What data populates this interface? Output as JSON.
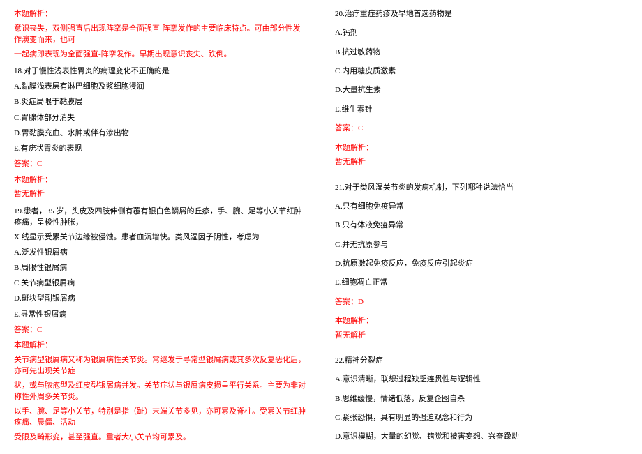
{
  "left_column": {
    "analysis_header_1": "本题解析：",
    "analysis_text_1a": "意识丧失，双侧强直后出现阵挛是全面强直-阵挛发作的主要临床特点。可由部分性发作演变而来，也可",
    "analysis_text_1b": "一起病即表现为全面强直-阵挛发作。早期出现意识丧失、跌倒。",
    "q18": {
      "stem": "18.对于慢性浅表性胃炎的病理变化不正确的是",
      "opt_a": "A.黏膜浅表层有淋巴细胞及浆细胞浸润",
      "opt_b": "B.炎症局限于黏膜层",
      "opt_c": "C.胃腺体部分消失",
      "opt_d": "D.胃黏膜充血、水肿或伴有渗出物",
      "opt_e": "E.有疣状胃炎的表现",
      "answer": "答案：C",
      "analysis_header": "本题解析：",
      "analysis_text": "暂无解析"
    },
    "q19": {
      "stem_a": "19.患者，35 岁，头皮及四肢伸侧有覆有银白色鳞屑的丘疹，手、腕、足等小关节红肿疼痛，呈梭性肿胀，",
      "stem_b": "X 线显示受累关节边缘被侵蚀。患者血沉增快。类风湿因子阴性，考虑为",
      "opt_a": "A.泛发性银屑病",
      "opt_b": "B.局限性银屑病",
      "opt_c": "C.关节病型银屑病",
      "opt_d": "D.斑块型副银屑病",
      "opt_e": "E.寻常性银屑病",
      "answer": "答案：C",
      "analysis_header": "本题解析：",
      "analysis_text_a": "关节病型银屑病又称为银屑病性关节炎。常继发于寻常型银屑病或其多次反复恶化后，亦可先出现关节症",
      "analysis_text_b": "状，或与脓疱型及红皮型银屑病并发。关节症状与银屑病皮损呈平行关系。主要为非对称性外周多关节炎。",
      "analysis_text_c": "以手、腕、足等小关节，特别是指（趾）末端关节多见，亦可累及脊柱。受累关节红肿疼痛、晨僵、活动",
      "analysis_text_d": "受限及畸形变，甚至强直。重者大小关节均可累及。"
    }
  },
  "right_column": {
    "q20": {
      "stem": "20.治疗重症药疹及早地首选药物是",
      "opt_a": "A.钙剂",
      "opt_b": "B.抗过敏药物",
      "opt_c": "C.内用糖皮质激素",
      "opt_d": "D.大量抗生素",
      "opt_e": "E.维生素针",
      "answer": "答案：C",
      "analysis_header": "本题解析：",
      "analysis_text": "暂无解析"
    },
    "q21": {
      "stem": "21.对于类风湿关节炎的发病机制，下列哪种说法恰当",
      "opt_a": "A.只有细胞免疫异常",
      "opt_b": "B.只有体液免疫异常",
      "opt_c": "C.并无抗原参与",
      "opt_d": "D.抗原激起免疫反应，免疫反应引起炎症",
      "opt_e": "E.细胞凋亡正常",
      "answer": "答案：D",
      "analysis_header": "本题解析：",
      "analysis_text": "暂无解析"
    },
    "q22": {
      "stem": "22.精神分裂症",
      "opt_a": "A.意识清晰，联想过程缺乏连贯性与逻辑性",
      "opt_b": "B.思维缓慢，情绪低落，反复企图自杀",
      "opt_c": "C.紧张恐惧，具有明显的强迫观念和行为",
      "opt_d": "D.意识模糊，大量的幻觉、错觉和被害妄想、兴奋躁动"
    }
  }
}
